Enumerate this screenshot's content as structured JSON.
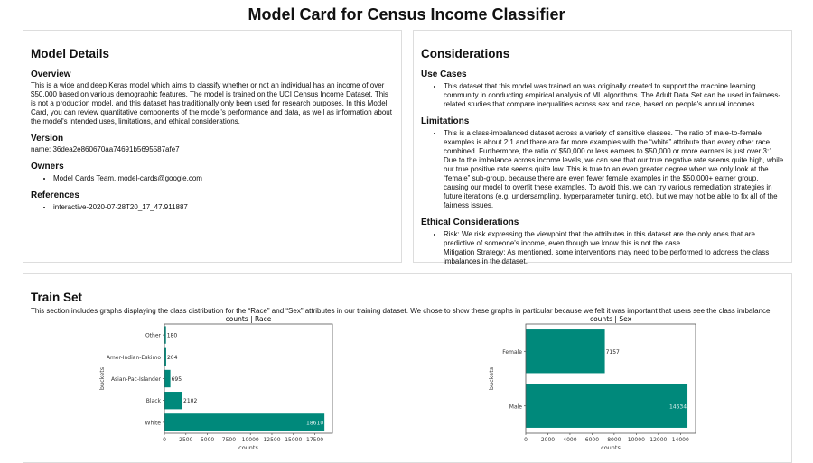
{
  "title": "Model Card for Census Income Classifier",
  "model_details": {
    "heading": "Model Details",
    "overview_heading": "Overview",
    "overview": "This is a wide and deep Keras model which aims to classify whether or not an individual has an income of over $50,000 based on various demographic features. The model is trained on the UCI Census Income Dataset. This is not a production model, and this dataset has traditionally only been used for research purposes. In this Model Card, you can review quantitative components of the model's performance and data, as well as information about the model's intended uses, limitations, and ethical considerations.",
    "version_heading": "Version",
    "version": "name: 36dea2e860670aa74691b5695587afe7",
    "owners_heading": "Owners",
    "owners": [
      "Model Cards Team, model-cards@google.com"
    ],
    "references_heading": "References",
    "references": [
      "interactive-2020-07-28T20_17_47.911887"
    ]
  },
  "considerations": {
    "heading": "Considerations",
    "use_cases_heading": "Use Cases",
    "use_cases": [
      "This dataset that this model was trained on was originally created to support the machine learning community in conducting empirical analysis of ML algorithms. The Adult Data Set can be used in fairness-related studies that compare inequalities across sex and race, based on people's annual incomes."
    ],
    "limitations_heading": "Limitations",
    "limitations": [
      "This is a class-imbalanced dataset across a variety of sensitive classes. The ratio of male-to-female examples is about 2:1 and there are far more examples with the “white” attribute than every other race combined. Furthermore, the ratio of $50,000 or less earners to $50,000 or more earners is just over 3:1. Due to the imbalance across income levels, we can see that our true negative rate seems quite high, while our true positive rate seems quite low. This is true to an even greater degree when we only look at the “female” sub-group, because there are even fewer female examples in the $50,000+ earner group, causing our model to overfit these examples. To avoid this, we can try various remediation strategies in future iterations (e.g. undersampling, hyperparameter tuning, etc), but we may not be able to fix all of the fairness issues."
    ],
    "ethical_heading": "Ethical Considerations",
    "ethical_risk": "Risk: We risk expressing the viewpoint that the attributes in this dataset are the only ones that are predictive of someone's income, even though we know this is not the case.",
    "ethical_mitigation": "Mitigation Strategy: As mentioned, some interventions may need to be performed to address the class imbalances in the dataset."
  },
  "train_set": {
    "heading": "Train Set",
    "description": "This section includes graphs displaying the class distribution for the “Race” and “Sex” attributes in our training dataset. We chose to show these graphs in particular because we felt it was important that users see the class imbalance."
  },
  "chart_data": [
    {
      "type": "bar",
      "orientation": "horizontal",
      "title": "counts | Race",
      "xlabel": "counts",
      "ylabel": "buckets",
      "categories": [
        "White",
        "Black",
        "Asian-Pac-Islander",
        "Amer-Indian-Eskimo",
        "Other"
      ],
      "values": [
        18610,
        2102,
        695,
        204,
        180
      ],
      "xlim": [
        0,
        19540
      ],
      "xticks": [
        0,
        2500,
        5000,
        7500,
        10000,
        12500,
        15000,
        17500
      ],
      "color": "#00897b",
      "grid": false
    },
    {
      "type": "bar",
      "orientation": "horizontal",
      "title": "counts | Sex",
      "xlabel": "counts",
      "ylabel": "buckets",
      "categories": [
        "Male",
        "Female"
      ],
      "values": [
        14634,
        7157
      ],
      "xlim": [
        0,
        15366
      ],
      "xticks": [
        0,
        2000,
        4000,
        6000,
        8000,
        10000,
        12000,
        14000
      ],
      "color": "#00897b",
      "grid": false
    }
  ]
}
